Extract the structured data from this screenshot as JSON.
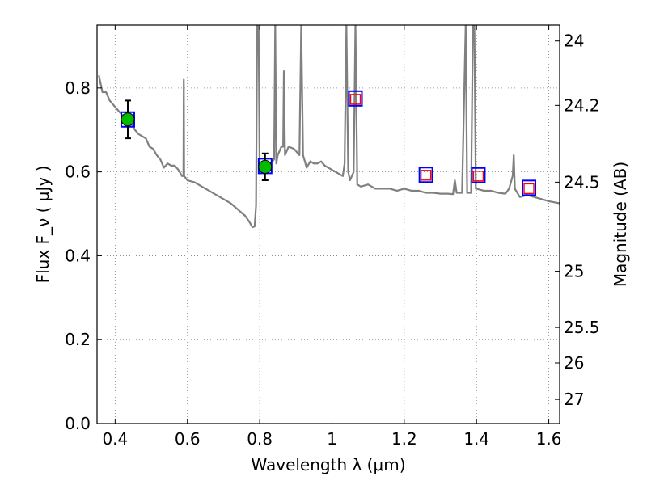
{
  "chart_data": {
    "type": "line",
    "xlabel": "Wavelength  λ (μm)",
    "ylabel": "Flux  F_ν  ( μJy )",
    "ylabel_right": "Magnitude (AB)",
    "xlim": [
      0.35,
      1.63
    ],
    "ylim": [
      0.0,
      0.95
    ],
    "grid": true,
    "x_ticks": [
      0.4,
      0.6,
      0.8,
      1.0,
      1.2,
      1.4,
      1.6
    ],
    "x_tick_labels": [
      "0.4",
      "0.6",
      "0.8",
      "1",
      "1.2",
      "1.4",
      "1.6"
    ],
    "y_ticks": [
      0.0,
      0.2,
      0.4,
      0.6,
      0.8
    ],
    "y_tick_labels": [
      "0.0",
      "0.2",
      "0.4",
      "0.6",
      "0.8"
    ],
    "right_ticks": [
      {
        "mag": 24.0,
        "label": "24"
      },
      {
        "mag": 24.2,
        "label": "24.2"
      },
      {
        "mag": 24.5,
        "label": "24.5"
      },
      {
        "mag": 25.0,
        "label": "25"
      },
      {
        "mag": 25.5,
        "label": "25.5"
      },
      {
        "mag": 26.0,
        "label": "26"
      },
      {
        "mag": 27.0,
        "label": "27"
      }
    ],
    "colors": {
      "model": "#808080",
      "observed": "#00bb00",
      "error_bar": "#000000",
      "model_box": "#0000ff",
      "predicted_box": "#ff0000",
      "grid": "#7f7f7f"
    },
    "series": [
      {
        "type": "line",
        "points": [
          [
            0.355,
            0.83
          ],
          [
            0.365,
            0.79
          ],
          [
            0.375,
            0.79
          ],
          [
            0.385,
            0.77
          ],
          [
            0.395,
            0.76
          ],
          [
            0.405,
            0.75
          ],
          [
            0.415,
            0.74
          ],
          [
            0.425,
            0.73
          ],
          [
            0.435,
            0.72
          ],
          [
            0.445,
            0.715
          ],
          [
            0.455,
            0.7
          ],
          [
            0.465,
            0.69
          ],
          [
            0.475,
            0.685
          ],
          [
            0.485,
            0.68
          ],
          [
            0.495,
            0.66
          ],
          [
            0.505,
            0.655
          ],
          [
            0.515,
            0.64
          ],
          [
            0.525,
            0.63
          ],
          [
            0.535,
            0.61
          ],
          [
            0.545,
            0.62
          ],
          [
            0.555,
            0.615
          ],
          [
            0.565,
            0.615
          ],
          [
            0.575,
            0.605
          ],
          [
            0.585,
            0.59
          ],
          [
            0.589,
            0.59
          ],
          [
            0.59,
            0.82
          ],
          [
            0.591,
            0.59
          ],
          [
            0.6,
            0.58
          ],
          [
            0.62,
            0.575
          ],
          [
            0.64,
            0.565
          ],
          [
            0.66,
            0.555
          ],
          [
            0.68,
            0.545
          ],
          [
            0.7,
            0.535
          ],
          [
            0.72,
            0.525
          ],
          [
            0.74,
            0.51
          ],
          [
            0.76,
            0.495
          ],
          [
            0.772,
            0.48
          ],
          [
            0.78,
            0.468
          ],
          [
            0.786,
            0.47
          ],
          [
            0.79,
            0.52
          ],
          [
            0.793,
            0.95
          ],
          [
            0.797,
            0.95
          ],
          [
            0.8,
            0.6
          ],
          [
            0.81,
            0.605
          ],
          [
            0.82,
            0.61
          ],
          [
            0.83,
            0.62
          ],
          [
            0.84,
            0.63
          ],
          [
            0.843,
            0.95
          ],
          [
            0.846,
            0.62
          ],
          [
            0.85,
            0.64
          ],
          [
            0.855,
            0.65
          ],
          [
            0.86,
            0.66
          ],
          [
            0.865,
            0.66
          ],
          [
            0.867,
            0.84
          ],
          [
            0.87,
            0.64
          ],
          [
            0.88,
            0.66
          ],
          [
            0.895,
            0.655
          ],
          [
            0.91,
            0.64
          ],
          [
            0.915,
            0.95
          ],
          [
            0.92,
            0.64
          ],
          [
            0.93,
            0.61
          ],
          [
            0.94,
            0.625
          ],
          [
            0.95,
            0.62
          ],
          [
            0.96,
            0.62
          ],
          [
            0.97,
            0.625
          ],
          [
            0.98,
            0.615
          ],
          [
            0.99,
            0.61
          ],
          [
            1.0,
            0.605
          ],
          [
            1.01,
            0.6
          ],
          [
            1.02,
            0.595
          ],
          [
            1.03,
            0.59
          ],
          [
            1.035,
            0.62
          ],
          [
            1.04,
            0.95
          ],
          [
            1.045,
            0.6
          ],
          [
            1.05,
            0.58
          ],
          [
            1.055,
            0.59
          ],
          [
            1.06,
            0.6
          ],
          [
            1.065,
            0.95
          ],
          [
            1.07,
            0.57
          ],
          [
            1.08,
            0.565
          ],
          [
            1.1,
            0.57
          ],
          [
            1.12,
            0.56
          ],
          [
            1.14,
            0.56
          ],
          [
            1.16,
            0.56
          ],
          [
            1.18,
            0.555
          ],
          [
            1.2,
            0.56
          ],
          [
            1.22,
            0.555
          ],
          [
            1.24,
            0.555
          ],
          [
            1.26,
            0.55
          ],
          [
            1.28,
            0.55
          ],
          [
            1.3,
            0.548
          ],
          [
            1.32,
            0.548
          ],
          [
            1.335,
            0.547
          ],
          [
            1.34,
            0.58
          ],
          [
            1.345,
            0.55
          ],
          [
            1.36,
            0.55
          ],
          [
            1.37,
            0.95
          ],
          [
            1.374,
            0.55
          ],
          [
            1.38,
            0.55
          ],
          [
            1.385,
            0.55
          ],
          [
            1.39,
            0.95
          ],
          [
            1.394,
            0.95
          ],
          [
            1.398,
            0.56
          ],
          [
            1.4,
            0.56
          ],
          [
            1.42,
            0.555
          ],
          [
            1.44,
            0.555
          ],
          [
            1.46,
            0.55
          ],
          [
            1.48,
            0.548
          ],
          [
            1.49,
            0.56
          ],
          [
            1.5,
            0.59
          ],
          [
            1.503,
            0.64
          ],
          [
            1.506,
            0.56
          ],
          [
            1.52,
            0.54
          ],
          [
            1.54,
            0.545
          ],
          [
            1.56,
            0.54
          ],
          [
            1.58,
            0.535
          ],
          [
            1.6,
            0.53
          ],
          [
            1.63,
            0.525
          ]
        ]
      },
      {
        "type": "model_photometry",
        "points": [
          [
            0.435,
            0.725
          ],
          [
            0.815,
            0.614
          ],
          [
            1.065,
            0.775
          ],
          [
            1.26,
            0.593
          ],
          [
            1.405,
            0.592
          ],
          [
            1.545,
            0.562
          ]
        ]
      },
      {
        "type": "predicted_photometry",
        "points": [
          [
            1.065,
            0.773
          ],
          [
            1.26,
            0.592
          ],
          [
            1.405,
            0.59
          ],
          [
            1.545,
            0.56
          ]
        ]
      },
      {
        "type": "observed_photometry",
        "points": [
          [
            0.435,
            0.725,
            0.045
          ],
          [
            0.815,
            0.612,
            0.032
          ]
        ]
      }
    ]
  }
}
